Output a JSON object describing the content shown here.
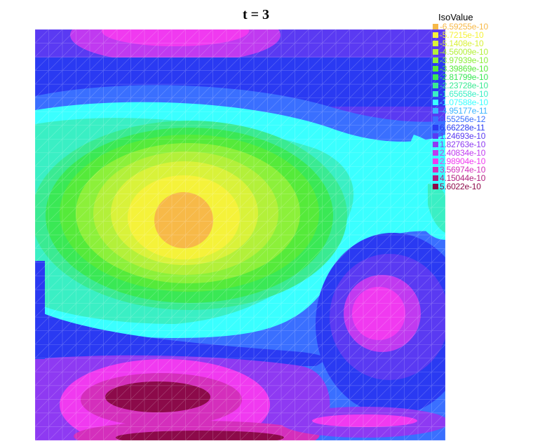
{
  "chart_data": {
    "type": "heatmap",
    "title": "t = 3",
    "legend": {
      "title": "IsoValue",
      "placement": "top-right",
      "entries": [
        {
          "label": "-6.59255e-10",
          "color": "#f7b948"
        },
        {
          "label": "-5.7215e-10",
          "color": "#f5f23a"
        },
        {
          "label": "-5.1408e-10",
          "color": "#d9f23a"
        },
        {
          "label": "-4.56009e-10",
          "color": "#b3f03a"
        },
        {
          "label": "-3.97939e-10",
          "color": "#8cf03a"
        },
        {
          "label": "-3.39869e-10",
          "color": "#55ea3a"
        },
        {
          "label": "-2.81799e-10",
          "color": "#3ae855"
        },
        {
          "label": "-2.23728e-10",
          "color": "#3aea92"
        },
        {
          "label": "-1.65658e-10",
          "color": "#3aefc4"
        },
        {
          "label": "-1.07588e-10",
          "color": "#3affff"
        },
        {
          "label": "-4.95177e-11",
          "color": "#3ab4ff"
        },
        {
          "label": "8.55256e-12",
          "color": "#3a6fff"
        },
        {
          "label": "6.66228e-11",
          "color": "#2a3af2"
        },
        {
          "label": "1.24693e-10",
          "color": "#5a3af2"
        },
        {
          "label": "1.82763e-10",
          "color": "#8e3af2"
        },
        {
          "label": "2.40834e-10",
          "color": "#c03af0"
        },
        {
          "label": "2.98904e-10",
          "color": "#f03af0"
        },
        {
          "label": "3.56974e-10",
          "color": "#d42fbc"
        },
        {
          "label": "4.15044e-10",
          "color": "#b01e7e"
        },
        {
          "label": "5.6022e-10",
          "color": "#8c0a4a"
        }
      ]
    },
    "grid": true
  }
}
